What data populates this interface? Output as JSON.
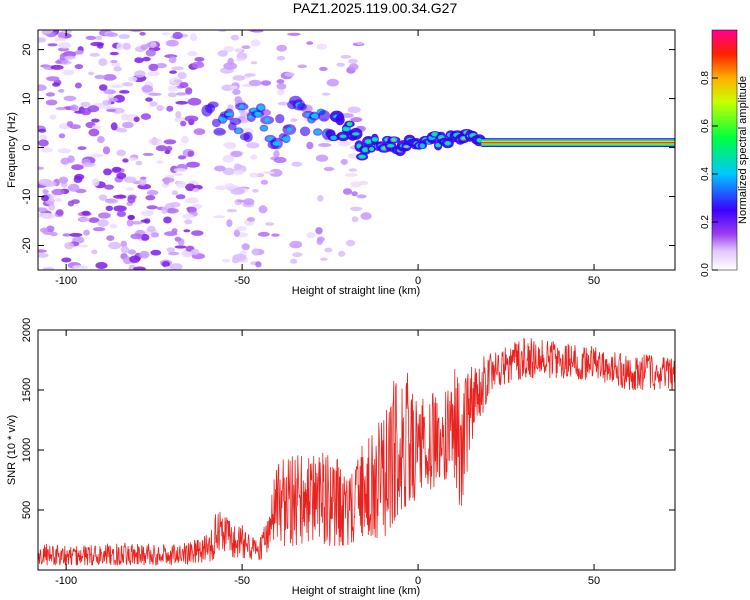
{
  "title": "PAZ1.2025.119.00.34.G27",
  "chart_data": [
    {
      "type": "heatmap",
      "title": "PAZ1.2025.119.00.34.G27",
      "xlabel": "Height of straight line (km)",
      "ylabel": "Frequency (Hz)",
      "xlim": [
        -108,
        73
      ],
      "ylim": [
        -25,
        24
      ],
      "xticks": [
        -100,
        -50,
        0,
        50
      ],
      "yticks": [
        -20,
        -10,
        0,
        10,
        20
      ],
      "ridge": [
        {
          "x": -58,
          "freq": 6.5
        },
        {
          "x": -50,
          "freq": 5.5
        },
        {
          "x": -45,
          "freq": 5
        },
        {
          "x": -40,
          "freq": 2
        },
        {
          "x": -35,
          "freq": 7
        },
        {
          "x": -28,
          "freq": 6
        },
        {
          "x": -22,
          "freq": 3
        },
        {
          "x": -15,
          "freq": 1
        },
        {
          "x": -5,
          "freq": 0.5
        },
        {
          "x": 5,
          "freq": 1.5
        },
        {
          "x": 12,
          "freq": 2.5
        },
        {
          "x": 18,
          "freq": 1
        },
        {
          "x": 73,
          "freq": 1
        }
      ],
      "colorbar": {
        "label": "Normalized spectral amplitude",
        "range": [
          0,
          1
        ],
        "ticks": [
          "0.0",
          "0.2",
          "0.4",
          "0.6",
          "0.8"
        ]
      }
    },
    {
      "type": "line",
      "title": "",
      "xlabel": "Height of straight line (km)",
      "ylabel": "SNR (10 * v/v)",
      "xlim": [
        -108,
        73
      ],
      "ylim": [
        0,
        2000
      ],
      "xticks": [
        -100,
        -50,
        0,
        50
      ],
      "yticks": [
        500,
        1000,
        1500,
        2000
      ],
      "series": [
        {
          "name": "SNR",
          "color": "#e8231f",
          "envelope": [
            {
              "x": -108,
              "low": 40,
              "high": 220
            },
            {
              "x": -90,
              "low": 40,
              "high": 230
            },
            {
              "x": -70,
              "low": 40,
              "high": 230
            },
            {
              "x": -60,
              "low": 60,
              "high": 300
            },
            {
              "x": -57,
              "low": 100,
              "high": 520
            },
            {
              "x": -50,
              "low": 100,
              "high": 380
            },
            {
              "x": -45,
              "low": 80,
              "high": 250
            },
            {
              "x": -40,
              "low": 200,
              "high": 1000
            },
            {
              "x": -35,
              "low": 200,
              "high": 1100
            },
            {
              "x": -30,
              "low": 250,
              "high": 1000
            },
            {
              "x": -25,
              "low": 200,
              "high": 1100
            },
            {
              "x": -20,
              "low": 200,
              "high": 800
            },
            {
              "x": -15,
              "low": 300,
              "high": 1200
            },
            {
              "x": -10,
              "low": 250,
              "high": 1400
            },
            {
              "x": -5,
              "low": 500,
              "high": 1800
            },
            {
              "x": 0,
              "low": 600,
              "high": 1500
            },
            {
              "x": 5,
              "low": 700,
              "high": 1600
            },
            {
              "x": 10,
              "low": 800,
              "high": 1700
            },
            {
              "x": 12,
              "low": 450,
              "high": 1750
            },
            {
              "x": 15,
              "low": 1000,
              "high": 1800
            },
            {
              "x": 20,
              "low": 1450,
              "high": 1850
            },
            {
              "x": 25,
              "low": 1550,
              "high": 1900
            },
            {
              "x": 30,
              "low": 1600,
              "high": 1980
            },
            {
              "x": 40,
              "low": 1600,
              "high": 1950
            },
            {
              "x": 50,
              "low": 1580,
              "high": 1900
            },
            {
              "x": 60,
              "low": 1500,
              "high": 1850
            },
            {
              "x": 73,
              "low": 1500,
              "high": 1800
            }
          ]
        }
      ]
    }
  ]
}
